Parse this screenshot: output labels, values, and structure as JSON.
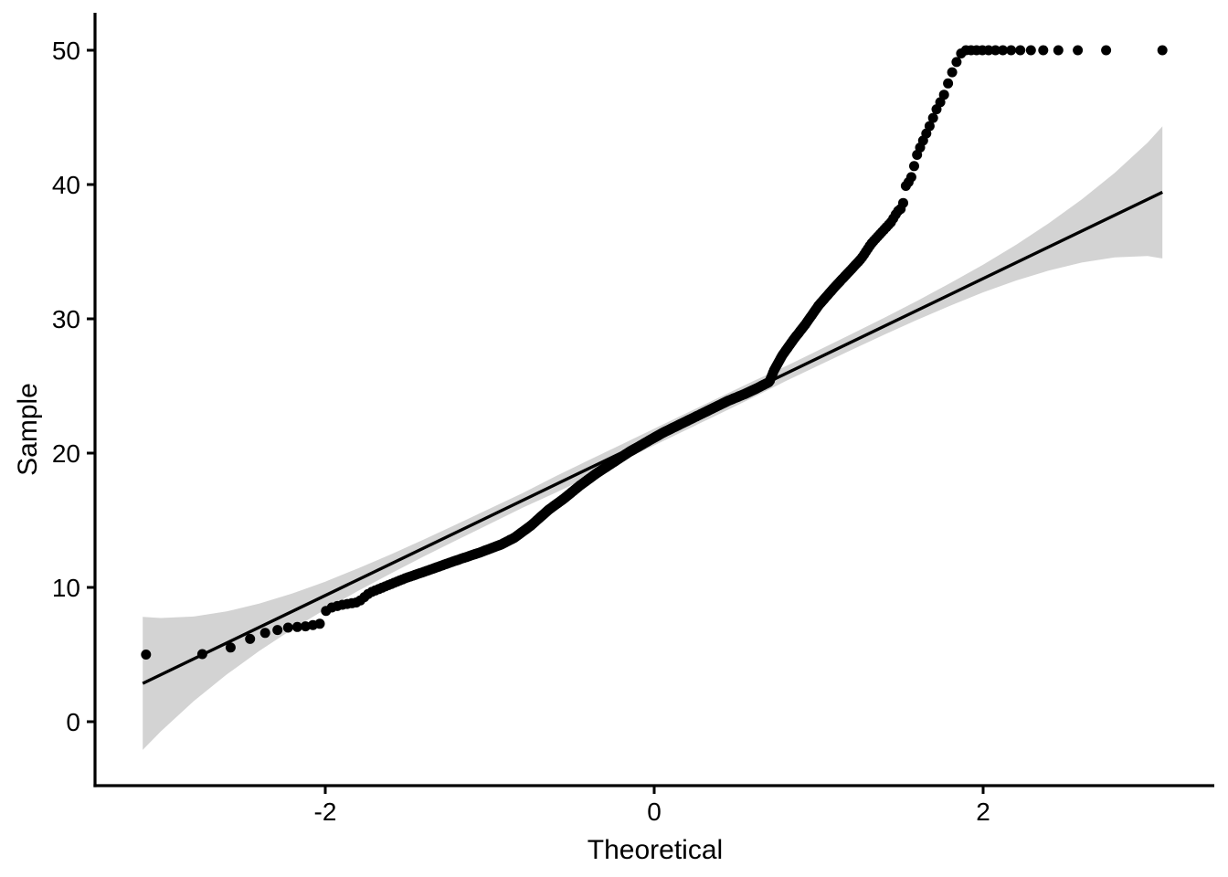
{
  "figure": {
    "background": "#ffffff",
    "kind": "qq-plot"
  },
  "axes": {
    "x": {
      "title": "Theoretical",
      "tick_labels": [
        "-2",
        "0",
        "2"
      ]
    },
    "y": {
      "title": "Sample",
      "tick_labels": [
        "0",
        "10",
        "20",
        "30",
        "40",
        "50"
      ]
    }
  },
  "chart_data": {
    "type": "scatter",
    "subtype": "qq-plot-with-confidence-band",
    "title": "",
    "xlabel": "Theoretical",
    "ylabel": "Sample",
    "xlim": [
      -3.4,
      3.41
    ],
    "ylim": [
      -4.76,
      52.8
    ],
    "x_ticks": [
      -2,
      0,
      2
    ],
    "y_ticks": [
      0,
      10,
      20,
      30,
      40,
      50
    ],
    "grid": "off",
    "legend": "none",
    "point_color": "#000000",
    "line_color": "#000000",
    "ribbon_color": "#d3d3d3",
    "axis_color": "#000000",
    "n_points": 500,
    "sample_censor_max": 50,
    "reference_line": {
      "x": [
        -3.11,
        3.09
      ],
      "y": [
        2.85,
        39.43
      ]
    },
    "qq_curve": [
      [
        -3.11,
        5.0
      ],
      [
        -2.76,
        5.0
      ],
      [
        -2.58,
        5.5
      ],
      [
        -2.47,
        6.1
      ],
      [
        -2.37,
        6.6
      ],
      [
        -2.3,
        6.8
      ],
      [
        -2.23,
        7.0
      ],
      [
        -2.12,
        7.1
      ],
      [
        -2.03,
        7.3
      ],
      [
        -1.99,
        8.4
      ],
      [
        -1.9,
        8.7
      ],
      [
        -1.8,
        8.9
      ],
      [
        -1.73,
        9.6
      ],
      [
        -1.63,
        10.1
      ],
      [
        -1.51,
        10.7
      ],
      [
        -1.39,
        11.2
      ],
      [
        -1.23,
        11.9
      ],
      [
        -1.06,
        12.6
      ],
      [
        -0.93,
        13.2
      ],
      [
        -0.85,
        13.7
      ],
      [
        -0.75,
        14.6
      ],
      [
        -0.64,
        15.8
      ],
      [
        -0.55,
        16.6
      ],
      [
        -0.45,
        17.6
      ],
      [
        -0.35,
        18.5
      ],
      [
        -0.25,
        19.3
      ],
      [
        -0.15,
        20.1
      ],
      [
        -0.05,
        20.8
      ],
      [
        0.05,
        21.5
      ],
      [
        0.15,
        22.1
      ],
      [
        0.25,
        22.7
      ],
      [
        0.35,
        23.3
      ],
      [
        0.45,
        23.9
      ],
      [
        0.55,
        24.4
      ],
      [
        0.62,
        24.8
      ],
      [
        0.7,
        25.3
      ],
      [
        0.73,
        26.2
      ],
      [
        0.78,
        27.3
      ],
      [
        0.85,
        28.5
      ],
      [
        0.92,
        29.6
      ],
      [
        1.0,
        31.0
      ],
      [
        1.1,
        32.4
      ],
      [
        1.2,
        33.7
      ],
      [
        1.26,
        34.5
      ],
      [
        1.32,
        35.6
      ],
      [
        1.38,
        36.4
      ],
      [
        1.44,
        37.2
      ],
      [
        1.48,
        38.0
      ],
      [
        1.51,
        38.3
      ],
      [
        1.53,
        39.9
      ],
      [
        1.56,
        40.4
      ],
      [
        1.6,
        42.3
      ],
      [
        1.64,
        43.4
      ],
      [
        1.68,
        44.5
      ],
      [
        1.72,
        45.7
      ],
      [
        1.76,
        46.6
      ],
      [
        1.8,
        48.0
      ],
      [
        1.83,
        48.9
      ],
      [
        1.86,
        49.7
      ],
      [
        1.89,
        50.0
      ],
      [
        3.11,
        50.0
      ]
    ],
    "ribbon": [
      [
        -3.11,
        -2.1,
        7.8
      ],
      [
        -3.0,
        -0.72,
        7.72
      ],
      [
        -2.8,
        1.53,
        7.83
      ],
      [
        -2.6,
        3.51,
        8.21
      ],
      [
        -2.4,
        5.28,
        8.8
      ],
      [
        -2.2,
        6.89,
        9.55
      ],
      [
        -2.0,
        8.37,
        10.43
      ],
      [
        -1.8,
        9.74,
        11.42
      ],
      [
        -1.6,
        11.05,
        12.47
      ],
      [
        -1.4,
        12.31,
        13.57
      ],
      [
        -1.2,
        13.53,
        14.71
      ],
      [
        -1.0,
        14.73,
        15.87
      ],
      [
        -0.8,
        15.93,
        17.03
      ],
      [
        -0.6,
        17.05,
        18.27
      ],
      [
        -0.4,
        18.22,
        19.46
      ],
      [
        -0.2,
        19.4,
        20.64
      ],
      [
        0.0,
        20.58,
        21.82
      ],
      [
        0.2,
        21.76,
        23.0
      ],
      [
        0.4,
        22.94,
        24.18
      ],
      [
        0.6,
        24.13,
        25.35
      ],
      [
        0.8,
        25.37,
        26.47
      ],
      [
        1.0,
        26.53,
        27.67
      ],
      [
        1.2,
        27.69,
        28.87
      ],
      [
        1.4,
        28.83,
        30.09
      ],
      [
        1.6,
        29.93,
        31.35
      ],
      [
        1.8,
        30.98,
        32.66
      ],
      [
        2.0,
        31.97,
        34.03
      ],
      [
        2.2,
        32.85,
        35.51
      ],
      [
        2.4,
        33.6,
        37.12
      ],
      [
        2.6,
        34.19,
        38.89
      ],
      [
        2.8,
        34.57,
        40.87
      ],
      [
        3.0,
        34.68,
        43.12
      ],
      [
        3.09,
        34.5,
        44.33
      ]
    ]
  }
}
